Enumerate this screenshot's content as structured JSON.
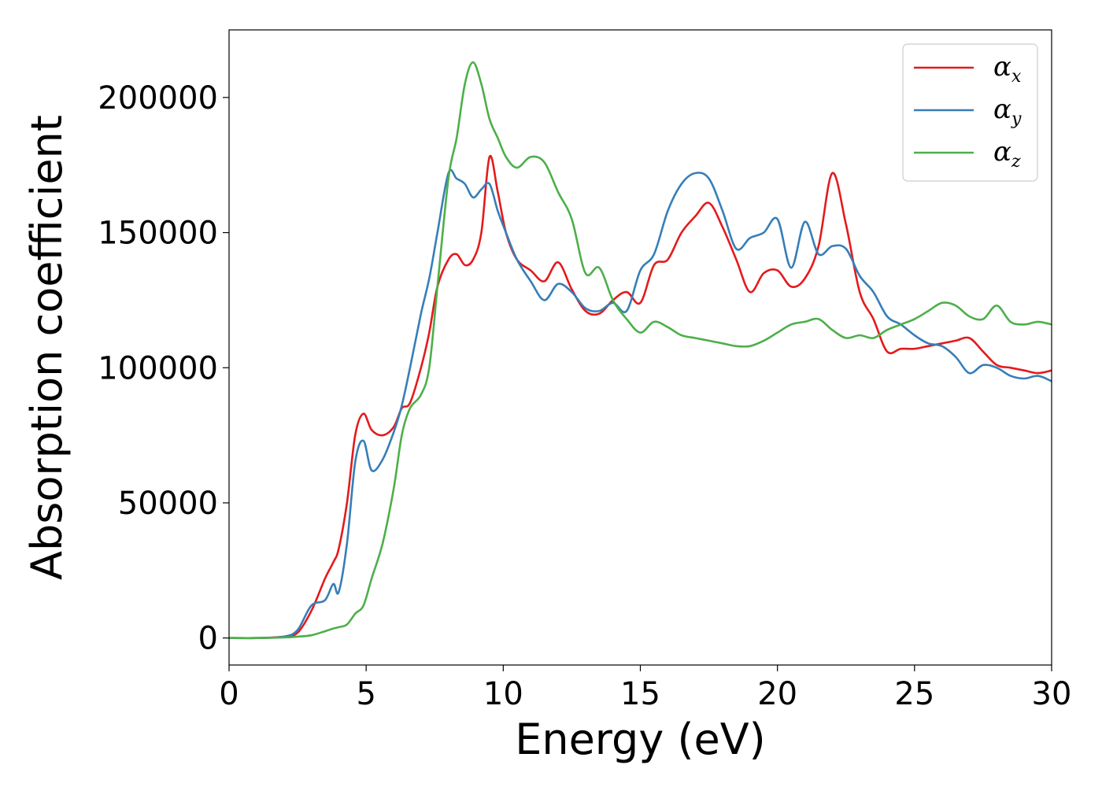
{
  "chart_data": {
    "type": "line",
    "xlabel": "Energy (eV)",
    "ylabel": "Absorption coefficient",
    "xlim": [
      0,
      30
    ],
    "ylim": [
      -10000,
      225000
    ],
    "xticks": [
      0,
      5,
      10,
      15,
      20,
      25,
      30
    ],
    "yticks": [
      0,
      50000,
      100000,
      150000,
      200000
    ],
    "xtick_labels": [
      "0",
      "5",
      "10",
      "15",
      "20",
      "25",
      "30"
    ],
    "ytick_labels": [
      "0",
      "50000",
      "100000",
      "150000",
      "200000"
    ],
    "grid": false,
    "legend_position": "top-right",
    "x": [
      0,
      1,
      2,
      2.5,
      3,
      3.5,
      3.8,
      4,
      4.3,
      4.6,
      4.9,
      5.2,
      5.6,
      6,
      6.3,
      6.6,
      7,
      7.3,
      7.6,
      8,
      8.3,
      8.6,
      8.9,
      9.2,
      9.5,
      9.8,
      10.1,
      10.5,
      11,
      11.5,
      12,
      12.5,
      13,
      13.5,
      14,
      14.5,
      15,
      15.5,
      16,
      16.5,
      17,
      17.5,
      18,
      18.5,
      19,
      19.5,
      20,
      20.5,
      21,
      21.5,
      22,
      22.5,
      23,
      23.5,
      24,
      24.5,
      25,
      25.5,
      26,
      26.5,
      27,
      27.5,
      28,
      28.5,
      29,
      29.5,
      30
    ],
    "series": [
      {
        "name": "α_x",
        "label_base": "α",
        "label_sub": "x",
        "color": "#e41a1c",
        "values": [
          0,
          0,
          500,
          2000,
          10000,
          22000,
          28000,
          33000,
          50000,
          75000,
          83000,
          77000,
          75000,
          78000,
          85000,
          87000,
          100000,
          113000,
          130000,
          140000,
          142000,
          138000,
          140000,
          150000,
          178000,
          165000,
          150000,
          140000,
          136000,
          132000,
          139000,
          129000,
          121000,
          120000,
          125000,
          128000,
          124000,
          138000,
          140000,
          150000,
          156000,
          161000,
          152000,
          140000,
          128000,
          135000,
          136000,
          130000,
          133000,
          145000,
          172000,
          153000,
          128000,
          118000,
          106000,
          107000,
          107000,
          108000,
          109000,
          110000,
          111000,
          106000,
          101000,
          100000,
          99000,
          98000,
          99000
        ]
      },
      {
        "name": "α_y",
        "label_base": "α",
        "label_sub": "y",
        "color": "#377eb8",
        "values": [
          0,
          0,
          500,
          3000,
          12000,
          14000,
          20000,
          17000,
          35000,
          65000,
          73000,
          62000,
          66000,
          76000,
          86000,
          100000,
          120000,
          133000,
          150000,
          172000,
          170000,
          168000,
          163000,
          166000,
          168000,
          158000,
          150000,
          140000,
          132000,
          125000,
          131000,
          128000,
          122000,
          121000,
          124000,
          121000,
          136000,
          142000,
          158000,
          168000,
          172000,
          170000,
          158000,
          144000,
          148000,
          150000,
          155000,
          137000,
          154000,
          142000,
          145000,
          144000,
          134000,
          128000,
          119000,
          116000,
          112000,
          109000,
          108000,
          104000,
          98000,
          101000,
          100000,
          97000,
          96000,
          97000,
          95000
        ]
      },
      {
        "name": "α_z",
        "label_base": "α",
        "label_sub": "z",
        "color": "#4daf4a",
        "values": [
          0,
          0,
          200,
          500,
          1000,
          2500,
          3500,
          4000,
          5000,
          9000,
          12000,
          22000,
          35000,
          55000,
          75000,
          85000,
          90000,
          100000,
          130000,
          170000,
          185000,
          205000,
          213000,
          205000,
          192000,
          185000,
          178000,
          174000,
          178000,
          176000,
          165000,
          155000,
          135000,
          137000,
          125000,
          118000,
          113000,
          117000,
          115000,
          112000,
          111000,
          110000,
          109000,
          108000,
          108000,
          110000,
          113000,
          116000,
          117000,
          118000,
          114000,
          111000,
          112000,
          111000,
          114000,
          116000,
          118000,
          121000,
          124000,
          123000,
          119000,
          118000,
          123000,
          117000,
          116000,
          117000,
          116000
        ]
      }
    ]
  }
}
